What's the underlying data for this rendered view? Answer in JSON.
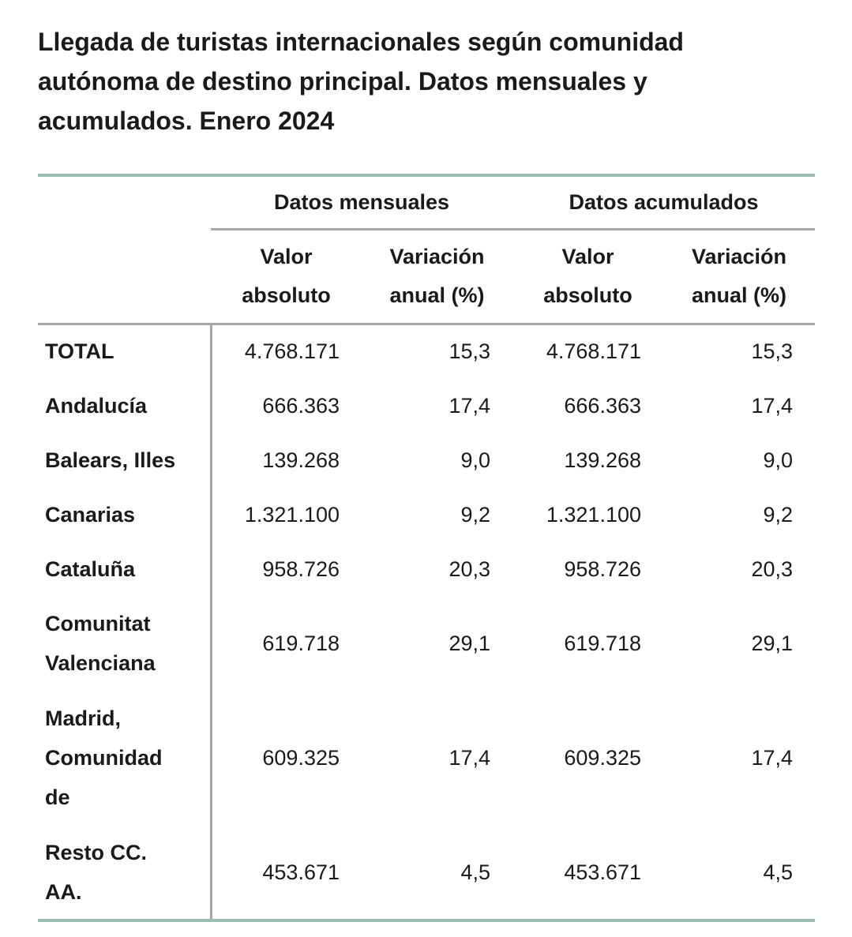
{
  "page": {
    "title": "Llegada de turistas internacionales según comunidad\nautónoma de destino principal. Datos mensuales y\nacumulados. Enero 2024"
  },
  "colors": {
    "accent_teal": "#9ebcb6",
    "rule_gray": "#a6a6a6",
    "text": "#1a1a1a"
  },
  "table": {
    "group_headers": [
      "Datos mensuales",
      "Datos acumulados"
    ],
    "column_headers": [
      "Valor\nabsoluto",
      "Variación\nanual (%)",
      "Valor\nabsoluto",
      "Variación\nanual (%)"
    ],
    "rows": [
      {
        "label": "TOTAL",
        "m_abs": "4.768.171",
        "m_var": "15,3",
        "a_abs": "4.768.171",
        "a_var": "15,3"
      },
      {
        "label": "Andalucía",
        "m_abs": "666.363",
        "m_var": "17,4",
        "a_abs": "666.363",
        "a_var": "17,4"
      },
      {
        "label": "Balears, Illes",
        "m_abs": "139.268",
        "m_var": "9,0",
        "a_abs": "139.268",
        "a_var": "9,0"
      },
      {
        "label": "Canarias",
        "m_abs": "1.321.100",
        "m_var": "9,2",
        "a_abs": "1.321.100",
        "a_var": "9,2"
      },
      {
        "label": "Cataluña",
        "m_abs": "958.726",
        "m_var": "20,3",
        "a_abs": "958.726",
        "a_var": "20,3"
      },
      {
        "label": "Comunitat\nValenciana",
        "m_abs": "619.718",
        "m_var": "29,1",
        "a_abs": "619.718",
        "a_var": "29,1"
      },
      {
        "label": "Madrid,\nComunidad\nde",
        "m_abs": "609.325",
        "m_var": "17,4",
        "a_abs": "609.325",
        "a_var": "17,4"
      },
      {
        "label": "Resto CC.\nAA.",
        "m_abs": "453.671",
        "m_var": "4,5",
        "a_abs": "453.671",
        "a_var": "4,5"
      }
    ]
  },
  "chart_data": {
    "type": "table",
    "title": "Llegada de turistas internacionales según comunidad autónoma de destino principal. Datos mensuales y acumulados. Enero 2024",
    "columns": [
      "Comunidad autónoma",
      "Datos mensuales - Valor absoluto",
      "Datos mensuales - Variación anual (%)",
      "Datos acumulados - Valor absoluto",
      "Datos acumulados - Variación anual (%)"
    ],
    "rows": [
      [
        "TOTAL",
        4768171,
        15.3,
        4768171,
        15.3
      ],
      [
        "Andalucía",
        666363,
        17.4,
        666363,
        17.4
      ],
      [
        "Balears, Illes",
        139268,
        9.0,
        139268,
        9.0
      ],
      [
        "Canarias",
        1321100,
        9.2,
        1321100,
        9.2
      ],
      [
        "Cataluña",
        958726,
        20.3,
        958726,
        20.3
      ],
      [
        "Comunitat Valenciana",
        619718,
        29.1,
        619718,
        29.1
      ],
      [
        "Madrid, Comunidad de",
        609325,
        17.4,
        609325,
        17.4
      ],
      [
        "Resto CC. AA.",
        453671,
        4.5,
        453671,
        4.5
      ]
    ]
  }
}
